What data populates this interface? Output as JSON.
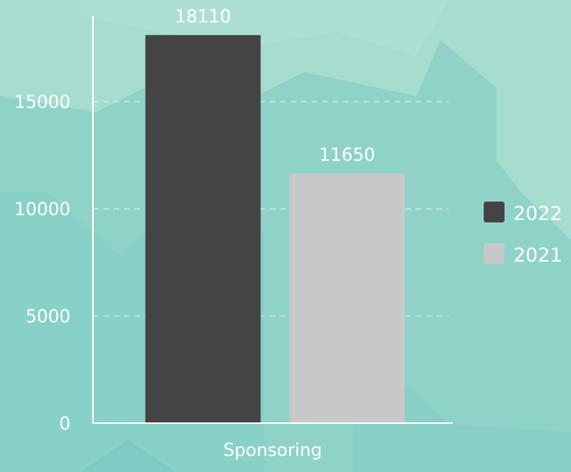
{
  "chart_data": {
    "type": "bar",
    "categories": [
      "Sponsoring"
    ],
    "series": [
      {
        "name": "2022",
        "values": [
          18110
        ],
        "color": "#444444"
      },
      {
        "name": "2021",
        "values": [
          11650
        ],
        "color": "#c8c8c8"
      }
    ],
    "ylim": [
      0,
      19000
    ],
    "yticks": [
      0,
      5000,
      10000,
      15000
    ],
    "grid": true,
    "legend_position": "right",
    "data_labels": true
  },
  "colors": {
    "background": "#8fd3c8",
    "text": "#ffffff",
    "axis": "#ffffff",
    "grid": "#d8f0ec"
  }
}
